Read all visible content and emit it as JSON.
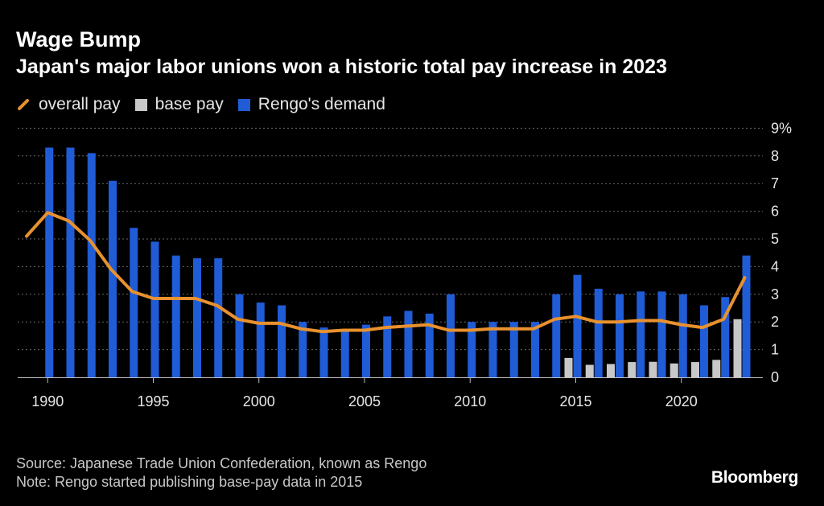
{
  "header": {
    "title": "Wage Bump",
    "subtitle": "Japan's major labor unions won a historic total pay increase in 2023"
  },
  "legend": {
    "overall": "overall pay",
    "base": "base pay",
    "demand": "Rengo's demand"
  },
  "footer": {
    "source": "Source: Japanese Trade Union Confederation, known as Rengo",
    "note": "Note: Rengo started publishing base-pay data in 2015",
    "brand": "Bloomberg"
  },
  "colors": {
    "overall": "#e8912e",
    "base": "#c8c8c8",
    "demand": "#1f5cd6",
    "grid": "#6a6a6a"
  },
  "chart_data": {
    "type": "bar",
    "title": "Wage Bump",
    "xlabel": "",
    "ylabel": "",
    "ylim": [
      0,
      9
    ],
    "y_ticks": [
      "0",
      "1",
      "2",
      "3",
      "4",
      "5",
      "6",
      "7",
      "8",
      "9%"
    ],
    "x_ticks": [
      "1990",
      "1995",
      "2000",
      "2005",
      "2010",
      "2015",
      "2020"
    ],
    "years": [
      1989,
      1990,
      1991,
      1992,
      1993,
      1994,
      1995,
      1996,
      1997,
      1998,
      1999,
      2000,
      2001,
      2002,
      2003,
      2004,
      2005,
      2006,
      2007,
      2008,
      2009,
      2010,
      2011,
      2012,
      2013,
      2014,
      2015,
      2016,
      2017,
      2018,
      2019,
      2020,
      2021,
      2022,
      2023
    ],
    "series": [
      {
        "name": "Rengo's demand",
        "kind": "bar",
        "values": [
          null,
          8.3,
          8.3,
          8.1,
          7.1,
          5.4,
          4.9,
          4.4,
          4.3,
          4.3,
          3.0,
          2.7,
          2.6,
          2.0,
          1.8,
          1.7,
          1.9,
          2.2,
          2.4,
          2.3,
          3.0,
          2.0,
          2.0,
          2.0,
          2.0,
          3.0,
          3.7,
          3.2,
          3.0,
          3.1,
          3.1,
          3.0,
          2.6,
          2.9,
          4.4
        ]
      },
      {
        "name": "base pay",
        "kind": "bar",
        "values": [
          null,
          null,
          null,
          null,
          null,
          null,
          null,
          null,
          null,
          null,
          null,
          null,
          null,
          null,
          null,
          null,
          null,
          null,
          null,
          null,
          null,
          null,
          null,
          null,
          null,
          null,
          0.7,
          0.45,
          0.48,
          0.55,
          0.56,
          0.5,
          0.55,
          0.63,
          2.1
        ]
      },
      {
        "name": "overall pay",
        "kind": "line",
        "values": [
          5.1,
          5.95,
          5.65,
          4.95,
          3.9,
          3.1,
          2.85,
          2.85,
          2.85,
          2.6,
          2.1,
          1.95,
          1.95,
          1.75,
          1.65,
          1.7,
          1.7,
          1.8,
          1.85,
          1.9,
          1.7,
          1.7,
          1.75,
          1.75,
          1.75,
          2.1,
          2.2,
          2.0,
          2.0,
          2.05,
          2.05,
          1.9,
          1.8,
          2.1,
          3.6
        ]
      }
    ]
  }
}
